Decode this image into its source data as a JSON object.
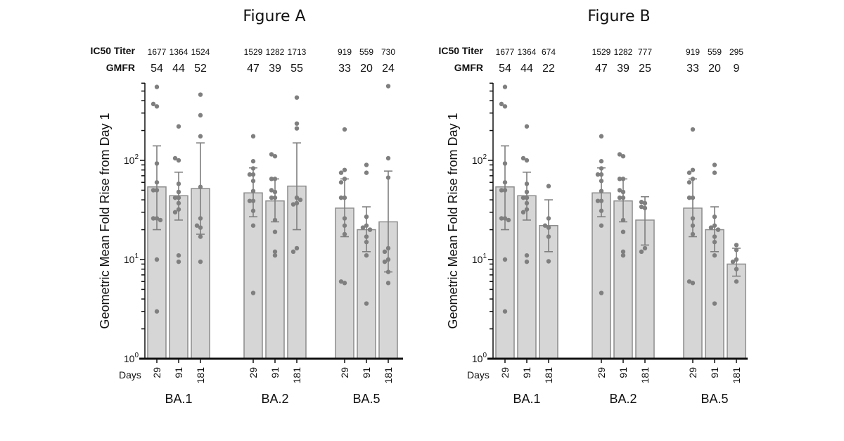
{
  "chart_data": [
    {
      "type": "bar",
      "title": "Figure A",
      "ylabel": "Geometric Mean Fold Rise from Day 1",
      "yscale": "log",
      "ylim": [
        1,
        600
      ],
      "ytick_labels": [
        {
          "base": "10",
          "exp": "0",
          "value": 1
        },
        {
          "base": "10",
          "exp": "1",
          "value": 10
        },
        {
          "base": "10",
          "exp": "2",
          "value": 100
        }
      ],
      "xlabel_prefix": "Days",
      "row_labels": {
        "ic50": "IC50 Titer",
        "gmfr": "GMFR"
      },
      "groups": [
        {
          "name": "BA.1",
          "bars": [
            {
              "day": "29",
              "ic50": "1677",
              "gmfr": 54,
              "err": [
                20,
                140
              ],
              "points": [
                550,
                350,
                370,
                93,
                60,
                50,
                50,
                26,
                26,
                25,
                10,
                3
              ]
            },
            {
              "day": "91",
              "ic50": "1364",
              "gmfr": 44,
              "err": [
                25,
                76
              ],
              "points": [
                220,
                100,
                105,
                58,
                48,
                42,
                42,
                37,
                32,
                30,
                11,
                9.5
              ]
            },
            {
              "day": "181",
              "ic50": "1524",
              "gmfr": 52,
              "err": [
                18,
                150
              ],
              "points": [
                460,
                285,
                175,
                54,
                26,
                21,
                22,
                17,
                9.5
              ]
            }
          ]
        },
        {
          "name": "BA.2",
          "bars": [
            {
              "day": "29",
              "ic50": "1529",
              "gmfr": 47,
              "err": [
                27,
                84
              ],
              "points": [
                175,
                98,
                83,
                72,
                72,
                62,
                49,
                39,
                39,
                31,
                22,
                4.6
              ]
            },
            {
              "day": "91",
              "ic50": "1282",
              "gmfr": 39,
              "err": [
                24,
                65
              ],
              "points": [
                110,
                115,
                65,
                65,
                48,
                50,
                42,
                42,
                25,
                19,
                12,
                11
              ]
            },
            {
              "day": "181",
              "ic50": "1713",
              "gmfr": 55,
              "err": [
                20,
                150
              ],
              "points": [
                430,
                235,
                210,
                42,
                37,
                40,
                36,
                13,
                12
              ]
            }
          ]
        },
        {
          "name": "BA.5",
          "bars": [
            {
              "day": "29",
              "ic50": "919",
              "gmfr": 33,
              "err": [
                17,
                65
              ],
              "points": [
                205,
                80,
                75,
                65,
                60,
                42,
                42,
                26,
                22,
                18,
                5.8,
                6
              ]
            },
            {
              "day": "91",
              "ic50": "559",
              "gmfr": 20,
              "err": [
                12,
                34
              ],
              "points": [
                90,
                75,
                27,
                22,
                21,
                20,
                20,
                17,
                15,
                11,
                3.6
              ]
            },
            {
              "day": "181",
              "ic50": "730",
              "gmfr": 24,
              "err": [
                7.5,
                78
              ],
              "points": [
                560,
                105,
                67,
                13,
                12,
                10,
                9.5,
                7.5,
                5.8
              ]
            }
          ]
        }
      ]
    },
    {
      "type": "bar",
      "title": "Figure B",
      "ylabel": "Geometric Mean Fold Rise from Day 1",
      "yscale": "log",
      "ylim": [
        1,
        600
      ],
      "ytick_labels": [
        {
          "base": "10",
          "exp": "0",
          "value": 1
        },
        {
          "base": "10",
          "exp": "1",
          "value": 10
        },
        {
          "base": "10",
          "exp": "2",
          "value": 100
        }
      ],
      "xlabel_prefix": "Days",
      "row_labels": {
        "ic50": "IC50 Titer",
        "gmfr": "GMFR"
      },
      "groups": [
        {
          "name": "BA.1",
          "bars": [
            {
              "day": "29",
              "ic50": "1677",
              "gmfr": 54,
              "err": [
                20,
                140
              ],
              "points": [
                550,
                350,
                370,
                93,
                60,
                50,
                50,
                26,
                26,
                25,
                10,
                3
              ]
            },
            {
              "day": "91",
              "ic50": "1364",
              "gmfr": 44,
              "err": [
                25,
                76
              ],
              "points": [
                220,
                100,
                105,
                58,
                48,
                42,
                42,
                37,
                32,
                30,
                11,
                9.5
              ]
            },
            {
              "day": "181",
              "ic50": "674",
              "gmfr": 22,
              "err": [
                12,
                40
              ],
              "points": [
                55,
                26,
                21,
                22,
                17,
                9.6
              ]
            }
          ]
        },
        {
          "name": "BA.2",
          "bars": [
            {
              "day": "29",
              "ic50": "1529",
              "gmfr": 47,
              "err": [
                27,
                84
              ],
              "points": [
                175,
                98,
                83,
                72,
                72,
                62,
                49,
                39,
                39,
                31,
                22,
                4.6
              ]
            },
            {
              "day": "91",
              "ic50": "1282",
              "gmfr": 39,
              "err": [
                24,
                65
              ],
              "points": [
                110,
                115,
                65,
                65,
                48,
                50,
                42,
                42,
                25,
                19,
                12,
                11
              ]
            },
            {
              "day": "181",
              "ic50": "777",
              "gmfr": 25,
              "err": [
                14,
                43
              ],
              "points": [
                37,
                38,
                33,
                34,
                13,
                12
              ]
            }
          ]
        },
        {
          "name": "BA.5",
          "bars": [
            {
              "day": "29",
              "ic50": "919",
              "gmfr": 33,
              "err": [
                17,
                65
              ],
              "points": [
                205,
                80,
                75,
                65,
                60,
                42,
                42,
                26,
                22,
                18,
                5.8,
                6
              ]
            },
            {
              "day": "91",
              "ic50": "559",
              "gmfr": 20,
              "err": [
                12,
                34
              ],
              "points": [
                90,
                75,
                27,
                22,
                21,
                20,
                20,
                17,
                15,
                11,
                3.6
              ]
            },
            {
              "day": "181",
              "ic50": "295",
              "gmfr": 9,
              "err": [
                6.8,
                13
              ],
              "points": [
                14,
                12.5,
                10,
                9.5,
                8,
                6
              ]
            }
          ]
        }
      ]
    }
  ]
}
